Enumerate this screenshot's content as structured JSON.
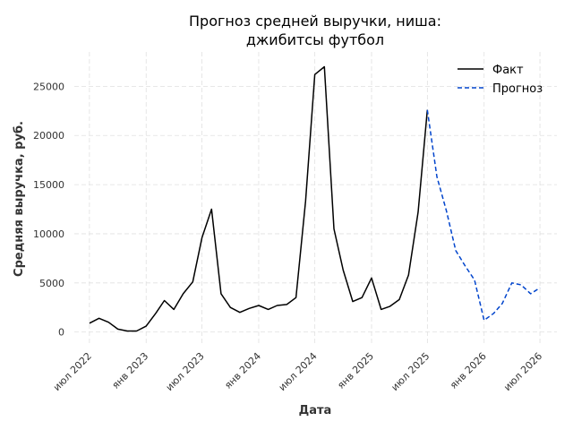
{
  "chart_data": {
    "type": "line",
    "title_lines": [
      "Прогноз средней выручки, ниша:",
      "джибитсы футбол"
    ],
    "xlabel": "Дата",
    "ylabel": "Средняя выручка, руб.",
    "ylim": [
      -1400,
      28500
    ],
    "yticks": [
      0,
      5000,
      10000,
      15000,
      20000,
      25000
    ],
    "xlim": [
      "2022-05-13",
      "2026-08-25"
    ],
    "xticks": [
      {
        "date": "2022-07-01",
        "label": "июл 2022"
      },
      {
        "date": "2023-01-01",
        "label": "янв 2023"
      },
      {
        "date": "2023-07-01",
        "label": "июл 2023"
      },
      {
        "date": "2024-01-01",
        "label": "янв 2024"
      },
      {
        "date": "2024-07-01",
        "label": "июл 2024"
      },
      {
        "date": "2025-01-01",
        "label": "янв 2025"
      },
      {
        "date": "2025-07-01",
        "label": "июл 2025"
      },
      {
        "date": "2026-01-01",
        "label": "янв 2026"
      },
      {
        "date": "2026-07-01",
        "label": "июл 2026"
      }
    ],
    "grid": true,
    "legend_position": "top-right",
    "series": [
      {
        "name": "Факт",
        "color": "#000000",
        "style": "solid",
        "points": [
          {
            "x": "2022-07-01",
            "y": 900
          },
          {
            "x": "2022-08-01",
            "y": 1400
          },
          {
            "x": "2022-09-01",
            "y": 1000
          },
          {
            "x": "2022-10-01",
            "y": 300
          },
          {
            "x": "2022-11-01",
            "y": 100
          },
          {
            "x": "2022-12-01",
            "y": 100
          },
          {
            "x": "2023-01-01",
            "y": 600
          },
          {
            "x": "2023-02-01",
            "y": 1900
          },
          {
            "x": "2023-03-01",
            "y": 3200
          },
          {
            "x": "2023-04-01",
            "y": 2300
          },
          {
            "x": "2023-05-01",
            "y": 3900
          },
          {
            "x": "2023-06-01",
            "y": 5100
          },
          {
            "x": "2023-07-01",
            "y": 9600
          },
          {
            "x": "2023-08-01",
            "y": 12500
          },
          {
            "x": "2023-09-01",
            "y": 3900
          },
          {
            "x": "2023-10-01",
            "y": 2500
          },
          {
            "x": "2023-11-01",
            "y": 2000
          },
          {
            "x": "2023-12-01",
            "y": 2400
          },
          {
            "x": "2024-01-01",
            "y": 2700
          },
          {
            "x": "2024-02-01",
            "y": 2300
          },
          {
            "x": "2024-03-01",
            "y": 2700
          },
          {
            "x": "2024-04-01",
            "y": 2800
          },
          {
            "x": "2024-05-01",
            "y": 3500
          },
          {
            "x": "2024-06-01",
            "y": 13300
          },
          {
            "x": "2024-07-01",
            "y": 26200
          },
          {
            "x": "2024-08-01",
            "y": 27000
          },
          {
            "x": "2024-09-01",
            "y": 10500
          },
          {
            "x": "2024-10-01",
            "y": 6300
          },
          {
            "x": "2024-11-01",
            "y": 3100
          },
          {
            "x": "2024-12-01",
            "y": 3500
          },
          {
            "x": "2025-01-01",
            "y": 5500
          },
          {
            "x": "2025-02-01",
            "y": 2300
          },
          {
            "x": "2025-03-01",
            "y": 2600
          },
          {
            "x": "2025-04-01",
            "y": 3300
          },
          {
            "x": "2025-05-01",
            "y": 5800
          },
          {
            "x": "2025-06-01",
            "y": 12200
          },
          {
            "x": "2025-07-01",
            "y": 22600
          }
        ]
      },
      {
        "name": "Прогноз",
        "color": "#0044cc",
        "style": "dashed",
        "points": [
          {
            "x": "2025-07-01",
            "y": 22600
          },
          {
            "x": "2025-08-01",
            "y": 15800
          },
          {
            "x": "2025-09-01",
            "y": 12300
          },
          {
            "x": "2025-10-01",
            "y": 8300
          },
          {
            "x": "2025-11-01",
            "y": 6700
          },
          {
            "x": "2025-12-01",
            "y": 5300
          },
          {
            "x": "2026-01-01",
            "y": 1200
          },
          {
            "x": "2026-02-01",
            "y": 1900
          },
          {
            "x": "2026-03-01",
            "y": 2900
          },
          {
            "x": "2026-04-01",
            "y": 5000
          },
          {
            "x": "2026-05-01",
            "y": 4800
          },
          {
            "x": "2026-06-01",
            "y": 3900
          },
          {
            "x": "2026-07-01",
            "y": 4500
          }
        ]
      }
    ]
  }
}
